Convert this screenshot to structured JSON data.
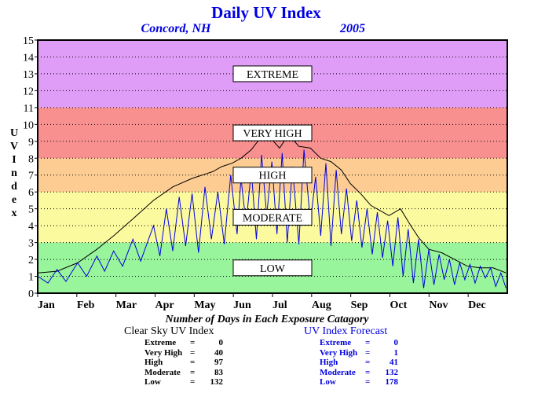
{
  "header": {
    "title": "Daily UV Index",
    "location": "Concord, NH",
    "year": "2005"
  },
  "chart_data": {
    "type": "line",
    "ylabel": "UV Index",
    "ylim": [
      0,
      15
    ],
    "yticks": [
      0,
      1,
      2,
      3,
      4,
      5,
      6,
      7,
      8,
      9,
      10,
      11,
      12,
      13,
      14,
      15
    ],
    "xlim": [
      0,
      365
    ],
    "month_labels": [
      "Jan",
      "Feb",
      "Mar",
      "Apr",
      "May",
      "Jun",
      "Jul",
      "Aug",
      "Sep",
      "Oct",
      "Nov",
      "Dec"
    ],
    "grid": true,
    "bands": [
      {
        "label": "LOW",
        "from": 0,
        "to": 3,
        "color": "#99f59b"
      },
      {
        "label": "MODERATE",
        "from": 3,
        "to": 6,
        "color": "#fcfa9e"
      },
      {
        "label": "HIGH",
        "from": 6,
        "to": 8,
        "color": "#fdcc93"
      },
      {
        "label": "VERY HIGH",
        "from": 8,
        "to": 11,
        "color": "#f89090"
      },
      {
        "label": "EXTREME",
        "from": 11,
        "to": 15,
        "color": "#e09df7"
      }
    ],
    "series": [
      {
        "color": "#000000",
        "x": [
          0,
          15,
          31,
          46,
          59,
          74,
          90,
          105,
          120,
          128,
          136,
          143,
          151,
          158,
          166,
          174,
          181,
          188,
          195,
          203,
          212,
          220,
          228,
          236,
          243,
          251,
          259,
          266,
          273,
          282,
          290,
          296,
          304,
          314,
          324,
          334,
          344,
          354,
          364
        ],
        "y": [
          1.2,
          1.3,
          1.8,
          2.6,
          3.4,
          4.4,
          5.5,
          6.3,
          6.8,
          7.0,
          7.2,
          7.5,
          7.7,
          8.0,
          8.5,
          9.3,
          9.2,
          8.6,
          9.4,
          8.7,
          8.6,
          8.0,
          7.8,
          7.3,
          6.5,
          5.9,
          5.2,
          4.9,
          4.6,
          5.0,
          4.0,
          3.3,
          2.6,
          2.4,
          2.0,
          1.6,
          1.5,
          1.5,
          1.2
        ]
      },
      {
        "color": "#0000e0",
        "x": [
          0,
          8,
          15,
          22,
          31,
          38,
          46,
          52,
          59,
          66,
          74,
          80,
          90,
          95,
          100,
          105,
          110,
          115,
          120,
          125,
          130,
          135,
          140,
          145,
          150,
          155,
          158,
          162,
          166,
          170,
          174,
          178,
          182,
          186,
          190,
          194,
          198,
          203,
          207,
          212,
          216,
          220,
          224,
          228,
          232,
          236,
          240,
          244,
          248,
          252,
          256,
          260,
          264,
          268,
          272,
          276,
          280,
          284,
          288,
          292,
          296,
          300,
          304,
          308,
          312,
          316,
          320,
          324,
          328,
          332,
          336,
          340,
          344,
          348,
          352,
          356,
          360,
          364
        ],
        "y": [
          1.0,
          0.6,
          1.4,
          0.7,
          1.8,
          1.0,
          2.2,
          1.3,
          2.5,
          1.6,
          3.2,
          1.9,
          4.0,
          2.2,
          5.0,
          2.5,
          5.7,
          2.8,
          5.9,
          2.4,
          6.3,
          3.2,
          6.0,
          2.9,
          7.0,
          3.5,
          6.8,
          4.1,
          7.3,
          3.2,
          8.2,
          4.6,
          7.8,
          3.5,
          8.3,
          3.0,
          7.5,
          2.9,
          8.5,
          4.2,
          6.9,
          3.4,
          7.7,
          2.8,
          7.3,
          3.5,
          6.2,
          3.1,
          5.5,
          2.7,
          5.0,
          2.3,
          4.8,
          2.1,
          4.3,
          1.6,
          4.5,
          1.0,
          3.8,
          0.6,
          3.2,
          0.3,
          2.6,
          0.5,
          2.3,
          0.8,
          2.0,
          0.5,
          1.8,
          0.8,
          1.7,
          0.6,
          1.6,
          0.9,
          1.5,
          0.4,
          1.2,
          0.3
        ]
      }
    ]
  },
  "stats": {
    "subtitle": "Number of Days in Each Exposure Catagory",
    "clear_sky": {
      "title": "Clear Sky UV Index",
      "rows": [
        {
          "label": "Extreme",
          "value": "0"
        },
        {
          "label": "Very High",
          "value": "40"
        },
        {
          "label": "High",
          "value": "97"
        },
        {
          "label": "Moderate",
          "value": "83"
        },
        {
          "label": "Low",
          "value": "132"
        }
      ]
    },
    "forecast": {
      "title": "UV Index Forecast",
      "rows": [
        {
          "label": "Extreme",
          "value": "0"
        },
        {
          "label": "Very High",
          "value": "1"
        },
        {
          "label": "High",
          "value": "41"
        },
        {
          "label": "Moderate",
          "value": "132"
        },
        {
          "label": "Low",
          "value": "178"
        }
      ]
    }
  }
}
